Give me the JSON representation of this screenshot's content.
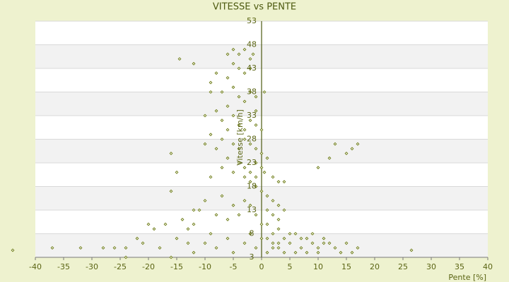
{
  "chart_data": {
    "type": "scatter",
    "title": "VITESSE vs PENTE",
    "x_label": "Pente [%]",
    "y_label": "Vitesse [km/h]",
    "x": [
      -14.5,
      -12,
      -6,
      -5,
      -4,
      -3,
      -1.5,
      -2,
      -5,
      -4,
      -3,
      -2,
      -6,
      -8,
      -9,
      -9,
      -7,
      -5,
      -4,
      -3,
      -2,
      -1,
      -6,
      -8,
      -10,
      -7,
      -5,
      -4,
      -3,
      -2,
      -1,
      0,
      -6,
      -9,
      -7,
      -5,
      -4,
      -3,
      -2,
      -1,
      0,
      -8,
      -10,
      -6,
      -4,
      -3,
      -2,
      -1,
      0,
      0.5,
      -1,
      -2,
      -3,
      -5,
      -7,
      -9,
      -16,
      -15,
      -1,
      0,
      1,
      2,
      3,
      1,
      2,
      4,
      3,
      1,
      -1,
      -3,
      -5,
      -7,
      -10,
      -12,
      -16,
      -14,
      -11,
      -13,
      -17,
      -20,
      -19,
      -22,
      -24,
      -26,
      -28,
      -32,
      -37,
      -44,
      -24,
      -16,
      -12,
      -10,
      -9,
      -8,
      -6,
      -5,
      -3,
      -2,
      -1,
      0,
      1,
      2,
      3,
      4,
      5,
      6,
      7,
      8,
      9,
      10,
      11,
      12,
      13,
      15,
      17,
      4,
      6,
      8,
      10,
      5,
      7,
      9,
      11,
      3,
      2,
      14,
      16,
      26.5,
      13,
      17,
      15,
      16,
      12,
      10,
      3,
      4,
      2,
      1,
      -18,
      -21,
      -15,
      -13,
      -12,
      -8,
      -6,
      -4,
      -2,
      1,
      2,
      3,
      0,
      0.5,
      -1
    ],
    "values": [
      45,
      44,
      46,
      47,
      46,
      47,
      46,
      45,
      44,
      43,
      42,
      43,
      41,
      42,
      40,
      38,
      38,
      39,
      37,
      36,
      38,
      37,
      35,
      34,
      33,
      32,
      33,
      31,
      30,
      32,
      31,
      30,
      30,
      29,
      28,
      27,
      26,
      28,
      27,
      26,
      25,
      26,
      27,
      24,
      23,
      22,
      21,
      23,
      22,
      21,
      20,
      19,
      20,
      21,
      22,
      20,
      25,
      21,
      18,
      17,
      16,
      15,
      14,
      13,
      12,
      13,
      11,
      10,
      12,
      15,
      14,
      16,
      15,
      13,
      17,
      11,
      13,
      9,
      10,
      10,
      9,
      7,
      5,
      5,
      5,
      5,
      5,
      4.5,
      3,
      3,
      4,
      6,
      8,
      5,
      7,
      4,
      6,
      8,
      5,
      7,
      4,
      6,
      5,
      7,
      6,
      8,
      5,
      7,
      6,
      5,
      7,
      6,
      5,
      6,
      5,
      4,
      4,
      4,
      4,
      8,
      7,
      8,
      6,
      9,
      8,
      4,
      4,
      4.5,
      27,
      27,
      25,
      26,
      24,
      22,
      19,
      19,
      20,
      24,
      5,
      6,
      7,
      6,
      10,
      12,
      11,
      12,
      14,
      7,
      5,
      6,
      10,
      38,
      34
    ],
    "color": "#6b7a12",
    "xlim": [
      -40,
      40
    ],
    "xticks": [
      -40,
      -35,
      -30,
      -25,
      -20,
      -15,
      -10,
      -5,
      0,
      5,
      10,
      15,
      20,
      25,
      30,
      35,
      40
    ],
    "ylim": [
      3,
      53
    ],
    "yticks": [
      3,
      8,
      13,
      18,
      23,
      28,
      33,
      38,
      43,
      48,
      53
    ],
    "grid": true
  }
}
